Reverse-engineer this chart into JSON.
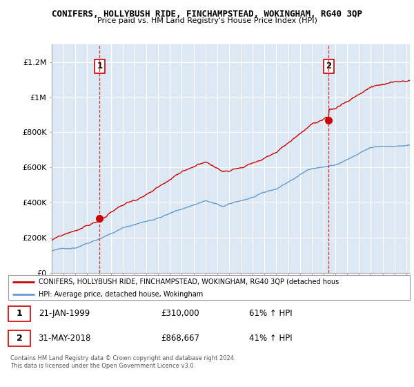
{
  "title": "CONIFERS, HOLLYBUSH RIDE, FINCHAMPSTEAD, WOKINGHAM, RG40 3QP",
  "subtitle": "Price paid vs. HM Land Registry's House Price Index (HPI)",
  "legend_line1": "CONIFERS, HOLLYBUSH RIDE, FINCHAMPSTEAD, WOKINGHAM, RG40 3QP (detached hous",
  "legend_line2": "HPI: Average price, detached house, Wokingham",
  "annotation1_date": "21-JAN-1999",
  "annotation1_price": "£310,000",
  "annotation1_hpi": "61% ↑ HPI",
  "annotation2_date": "31-MAY-2018",
  "annotation2_price": "£868,667",
  "annotation2_hpi": "41% ↑ HPI",
  "footnote1": "Contains HM Land Registry data © Crown copyright and database right 2024.",
  "footnote2": "This data is licensed under the Open Government Licence v3.0.",
  "ylim": [
    0,
    1300000
  ],
  "yticks": [
    0,
    200000,
    400000,
    600000,
    800000,
    1000000,
    1200000
  ],
  "ytick_labels": [
    "£0",
    "£200K",
    "£400K",
    "£600K",
    "£800K",
    "£1M",
    "£1.2M"
  ],
  "red_line_color": "#cc0000",
  "blue_line_color": "#6699cc",
  "dashed_red_color": "#cc0000",
  "background_color": "#ffffff",
  "plot_bg_color": "#dce9f5",
  "grid_color": "#ffffff",
  "marker1_x": 1999.05,
  "marker1_y": 310000,
  "marker2_x": 2018.42,
  "marker2_y": 868667,
  "vline1_x": 1999.05,
  "vline2_x": 2018.42,
  "xmin": 1995,
  "xmax": 2025.3
}
